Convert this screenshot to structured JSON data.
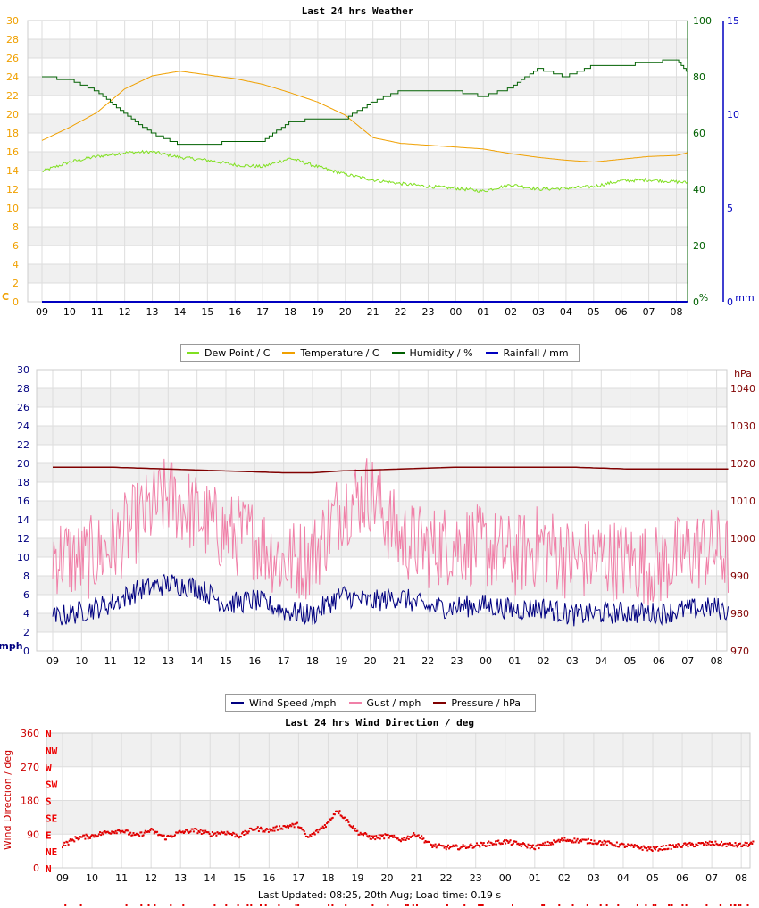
{
  "page": {
    "footer": "Last Updated: 08:25, 20th Aug; Load time: 0.19 s"
  },
  "chart_data": [
    {
      "type": "line",
      "title": "Last 24 hrs Weather",
      "x_hours": [
        "09",
        "10",
        "11",
        "12",
        "13",
        "14",
        "15",
        "16",
        "17",
        "18",
        "19",
        "20",
        "21",
        "22",
        "23",
        "00",
        "01",
        "02",
        "03",
        "04",
        "05",
        "06",
        "07",
        "08"
      ],
      "axes": {
        "left": {
          "label": "C",
          "ticks": [
            0,
            2,
            4,
            6,
            8,
            10,
            12,
            14,
            16,
            18,
            20,
            22,
            24,
            26,
            28,
            30
          ],
          "ylim": [
            0,
            30
          ],
          "color": "#f0a000"
        },
        "right1": {
          "label": "%",
          "ticks": [
            0,
            20,
            40,
            60,
            80,
            100
          ],
          "ylim": [
            0,
            100
          ],
          "color": "#006000"
        },
        "right2": {
          "label": "mm",
          "ticks": [
            0,
            5,
            10,
            15
          ],
          "ylim": [
            0,
            15
          ],
          "color": "#0000c0"
        }
      },
      "series": [
        {
          "name": "Dew Point / C",
          "color": "#80e020",
          "axis": "left",
          "x": [
            0,
            1,
            2,
            3,
            4,
            5,
            6,
            7,
            8,
            9,
            10,
            11,
            12,
            13,
            14,
            15,
            16,
            17,
            18,
            19,
            20,
            21,
            22,
            23,
            23.4
          ],
          "values": [
            13.9,
            14.9,
            15.5,
            15.9,
            16.0,
            15.4,
            15.1,
            14.6,
            14.4,
            15.3,
            14.4,
            13.6,
            13.0,
            12.6,
            12.3,
            12.1,
            11.8,
            12.5,
            12.0,
            12.1,
            12.3,
            12.9,
            13.0,
            12.8,
            12.7
          ]
        },
        {
          "name": "Temperature / C",
          "color": "#f0a000",
          "axis": "left",
          "x": [
            0,
            1,
            2,
            3,
            4,
            5,
            6,
            7,
            8,
            9,
            10,
            11,
            12,
            13,
            14,
            15,
            16,
            17,
            18,
            19,
            20,
            21,
            22,
            23,
            23.4
          ],
          "values": [
            17.2,
            18.6,
            20.2,
            22.7,
            24.1,
            24.6,
            24.2,
            23.8,
            23.2,
            22.3,
            21.3,
            19.9,
            17.5,
            16.9,
            16.7,
            16.5,
            16.3,
            15.8,
            15.4,
            15.1,
            14.9,
            15.2,
            15.5,
            15.6,
            15.9
          ]
        },
        {
          "name": "Humidity / %",
          "color": "#006000",
          "axis": "right1",
          "x": [
            0,
            1,
            2,
            3,
            4,
            5,
            6,
            7,
            8,
            9,
            10,
            11,
            12,
            13,
            14,
            15,
            16,
            17,
            18,
            19,
            20,
            21,
            22,
            23,
            23.4
          ],
          "values": [
            80,
            79,
            75,
            67,
            60,
            56,
            56,
            57,
            57,
            64,
            65,
            65,
            71,
            75,
            75,
            75,
            73,
            76,
            83,
            80,
            84,
            84,
            85,
            86,
            82
          ]
        },
        {
          "name": "Rainfall / mm",
          "color": "#0000c0",
          "axis": "right2",
          "x": [
            0,
            23.4
          ],
          "values": [
            0,
            0
          ]
        }
      ]
    },
    {
      "type": "line",
      "title": "",
      "x_hours": [
        "09",
        "10",
        "11",
        "12",
        "13",
        "14",
        "15",
        "16",
        "17",
        "18",
        "19",
        "20",
        "21",
        "22",
        "23",
        "00",
        "01",
        "02",
        "03",
        "04",
        "05",
        "06",
        "07",
        "08"
      ],
      "axes": {
        "left": {
          "label": "mph",
          "ticks": [
            0,
            2,
            4,
            6,
            8,
            10,
            12,
            14,
            16,
            18,
            20,
            22,
            24,
            26,
            28,
            30
          ],
          "ylim": [
            0,
            30
          ],
          "color": "#000080"
        },
        "right": {
          "label": "hPa",
          "ticks": [
            970,
            980,
            990,
            1000,
            1010,
            1020,
            1030,
            1040
          ],
          "ylim": [
            970,
            1045
          ],
          "color": "#800000"
        }
      },
      "series": [
        {
          "name": "Wind Speed /mph",
          "color": "#000080",
          "axis": "left",
          "x": [
            0,
            1,
            2,
            3,
            4,
            5,
            6,
            7,
            8,
            9,
            10,
            11,
            12,
            13,
            14,
            15,
            16,
            17,
            18,
            19,
            20,
            21,
            22,
            23,
            23.4
          ],
          "values": [
            3.5,
            4.2,
            5.0,
            6.5,
            7.2,
            6.8,
            5.0,
            5.4,
            4.3,
            3.8,
            6.0,
            5.2,
            5.8,
            4.6,
            4.7,
            4.9,
            4.4,
            4.6,
            3.8,
            4.0,
            4.1,
            4.0,
            4.4,
            4.6,
            4.2
          ]
        },
        {
          "name": "Gust / mph",
          "color": "#f080a8",
          "axis": "left",
          "x": [
            0,
            1,
            2,
            3,
            4,
            5,
            6,
            7,
            8,
            9,
            10,
            11,
            12,
            13,
            14,
            15,
            16,
            17,
            18,
            19,
            20,
            21,
            22,
            23,
            23.4
          ],
          "values": [
            10.5,
            9.5,
            11.0,
            14.0,
            16.5,
            14.5,
            12.5,
            12.0,
            9.5,
            10.0,
            15.5,
            17.0,
            12.0,
            11.0,
            11.5,
            11.0,
            10.0,
            11.5,
            9.5,
            10.0,
            9.5,
            9.0,
            10.5,
            11.0,
            10.0
          ]
        },
        {
          "name": "Pressure / hPa",
          "color": "#800000",
          "axis": "right",
          "x": [
            0,
            2,
            4,
            6,
            8,
            9,
            10,
            12,
            14,
            16,
            18,
            20,
            22,
            23.4
          ],
          "values": [
            1019,
            1019,
            1018.5,
            1018,
            1017.5,
            1017.5,
            1018,
            1018.5,
            1019,
            1019,
            1019,
            1018.5,
            1018.5,
            1018.5
          ]
        }
      ]
    },
    {
      "type": "scatter",
      "title": "Last 24 hrs Wind Direction / deg",
      "x_hours": [
        "09",
        "10",
        "11",
        "12",
        "13",
        "14",
        "15",
        "16",
        "17",
        "18",
        "19",
        "20",
        "21",
        "22",
        "23",
        "00",
        "01",
        "02",
        "03",
        "04",
        "05",
        "06",
        "07",
        "08"
      ],
      "axes": {
        "left": {
          "label": "Wind Direction / deg",
          "ticks": [
            0,
            90,
            180,
            270,
            360
          ],
          "ylim": [
            0,
            360
          ],
          "color": "#cc0000"
        },
        "compass": [
          "N",
          "NE",
          "E",
          "SE",
          "S",
          "SW",
          "W",
          "NW",
          "N"
        ]
      },
      "series": [
        {
          "name": "Wind Direction / deg",
          "color": "#e00000",
          "x": [
            0,
            0.5,
            1,
            1.5,
            2,
            2.5,
            3,
            3.5,
            4,
            4.5,
            5,
            5.5,
            6,
            6.5,
            7,
            7.5,
            8,
            8.3,
            8.6,
            9,
            9.3,
            9.6,
            10,
            10.5,
            11,
            11.5,
            12,
            12.5,
            13,
            13.5,
            14,
            15,
            16,
            17,
            18,
            19,
            20,
            21,
            22,
            23,
            23.4
          ],
          "values": [
            60,
            80,
            85,
            95,
            100,
            85,
            100,
            80,
            95,
            100,
            90,
            95,
            85,
            105,
            100,
            110,
            115,
            80,
            95,
            120,
            155,
            130,
            95,
            80,
            85,
            75,
            90,
            60,
            55,
            55,
            60,
            70,
            55,
            75,
            70,
            60,
            50,
            60,
            65,
            60,
            65
          ]
        }
      ]
    }
  ]
}
